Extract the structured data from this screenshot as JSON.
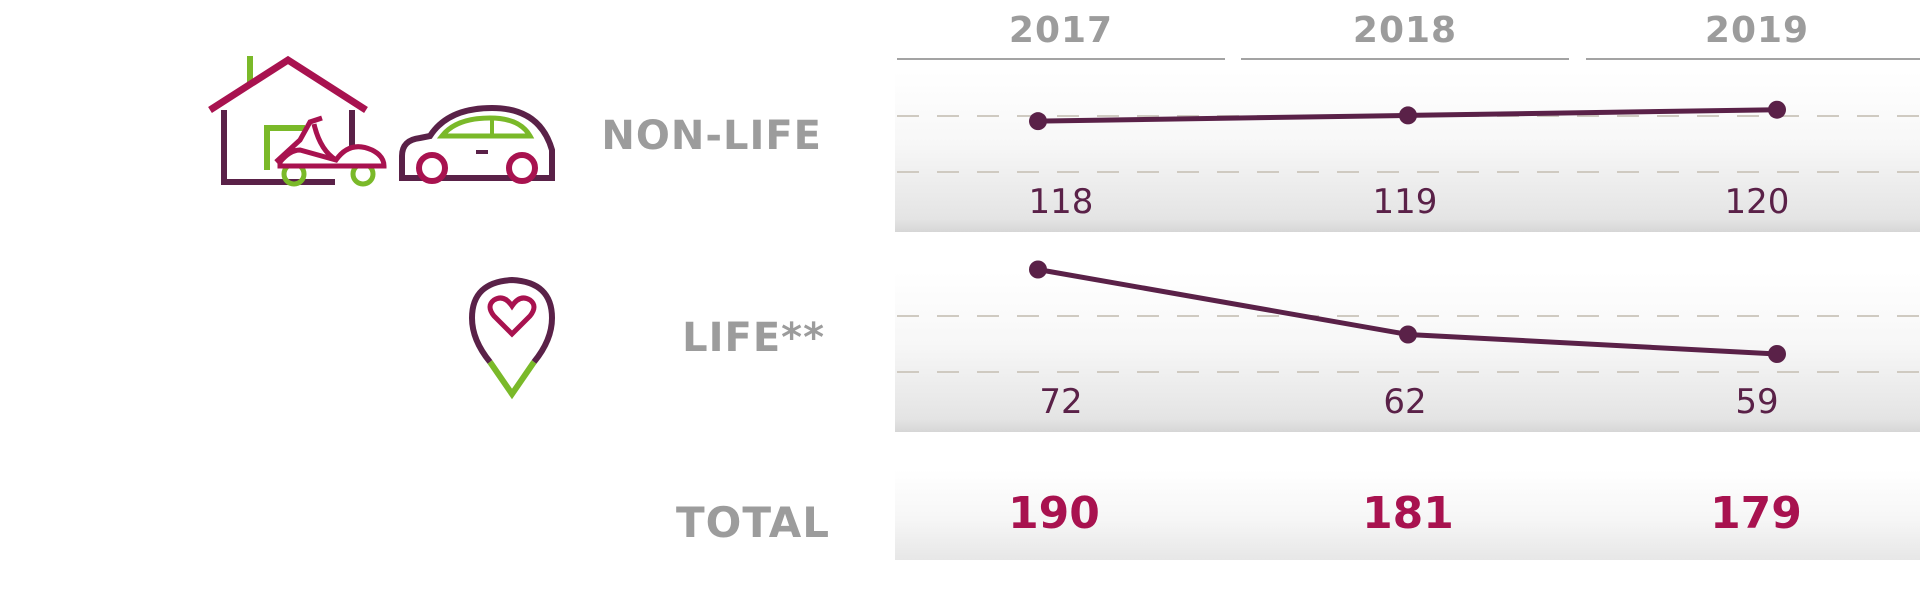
{
  "colors": {
    "label_gray": "#9c9c9c",
    "series_purple": "#5a2148",
    "total_magenta": "#a8124f",
    "icon_green": "#7ab929",
    "dash_gray": "#cfcac1"
  },
  "icons": {
    "non_life": "house-scooter-car-icon",
    "life": "heart-location-pin-icon"
  },
  "chart_data": {
    "type": "line",
    "categories": [
      "2017",
      "2018",
      "2019"
    ],
    "series": [
      {
        "name": "NON-LIFE",
        "values": [
          118,
          119,
          120
        ],
        "value_labels": [
          "118",
          "119",
          "120"
        ]
      },
      {
        "name": "LIFE**",
        "values": [
          72,
          62,
          59
        ],
        "value_labels": [
          "72",
          "62",
          "59"
        ]
      }
    ],
    "totals": {
      "label": "TOTAL",
      "values": [
        190,
        181,
        179
      ],
      "value_labels": [
        "190",
        "181",
        "179"
      ]
    },
    "series_ranges": [
      [
        117.5,
        120.3
      ],
      [
        57,
        73
      ]
    ],
    "grid": "dashed"
  }
}
